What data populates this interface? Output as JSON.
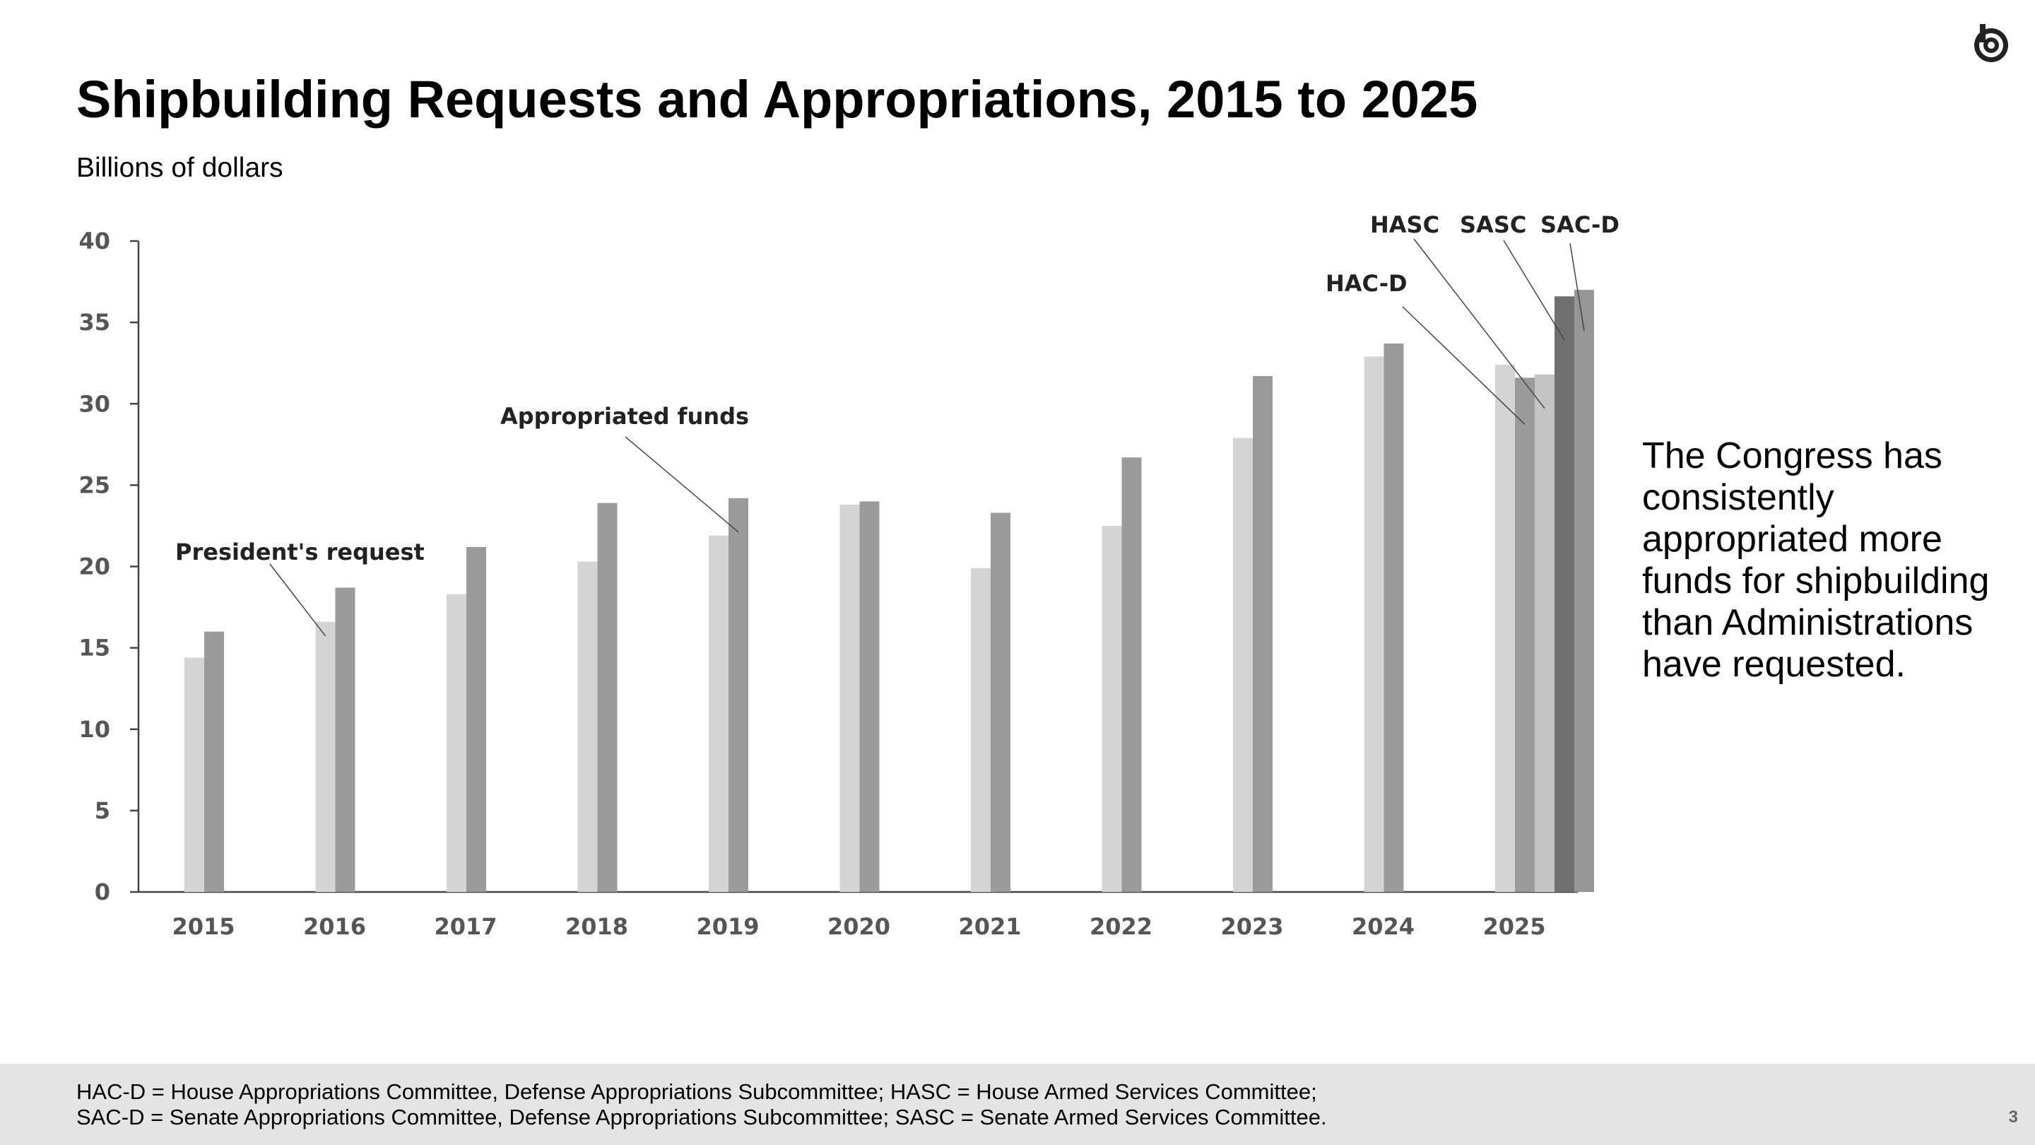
{
  "header": {
    "title": "Shipbuilding Requests and Appropriations, 2015 to 2025",
    "units": "Billions of dollars",
    "logo_icon": "cbo-logo-icon"
  },
  "chart_data": {
    "type": "bar",
    "categories": [
      "2015",
      "2016",
      "2017",
      "2018",
      "2019",
      "2020",
      "2021",
      "2022",
      "2023",
      "2024",
      "2025"
    ],
    "ylim": [
      0,
      40
    ],
    "yticks": [
      0,
      5,
      10,
      15,
      20,
      25,
      30,
      35,
      40
    ],
    "grid": false,
    "series": [
      {
        "name": "President's request",
        "color": "#d4d4d4",
        "values": [
          14.4,
          16.6,
          18.3,
          20.3,
          21.9,
          23.8,
          19.9,
          22.5,
          27.9,
          32.9,
          32.4
        ]
      },
      {
        "name": "Appropriated funds",
        "color": "#9b9b9b",
        "values": [
          16.0,
          18.7,
          21.2,
          23.9,
          24.2,
          24.0,
          23.3,
          26.7,
          31.7,
          33.7,
          null
        ]
      }
    ],
    "committee_bars_2025": [
      {
        "name": "HAC-D",
        "value": 31.6,
        "color": "#9b9b9b"
      },
      {
        "name": "HASC",
        "value": 31.8,
        "color": "#c4c4c4"
      },
      {
        "name": "SASC",
        "value": 36.6,
        "color": "#707070"
      },
      {
        "name": "SAC-D",
        "value": 37.0,
        "color": "#969696"
      }
    ],
    "annotations": [
      {
        "text": "President's request",
        "category": "2016",
        "bar": "request"
      },
      {
        "text": "Appropriated funds",
        "category": "2019",
        "bar": "appropriated"
      },
      {
        "text": "HAC-D",
        "category": "2025",
        "bar": "HAC-D"
      },
      {
        "text": "HASC",
        "category": "2025",
        "bar": "HASC"
      },
      {
        "text": "SASC",
        "category": "2025",
        "bar": "SASC"
      },
      {
        "text": "SAC-D",
        "category": "2025",
        "bar": "SAC-D"
      }
    ]
  },
  "side_note": "The Congress has consistently appropriated more funds for shipbuilding than Administrations have requested.",
  "footer": {
    "line1": "HAC-D = House Appropriations Committee, Defense Appropriations Subcommittee; HASC = House Armed Services Committee;",
    "line2": "SAC-D = Senate Appropriations Committee, Defense Appropriations Subcommittee; SASC = Senate Armed Services Committee.",
    "page_number": "3"
  }
}
